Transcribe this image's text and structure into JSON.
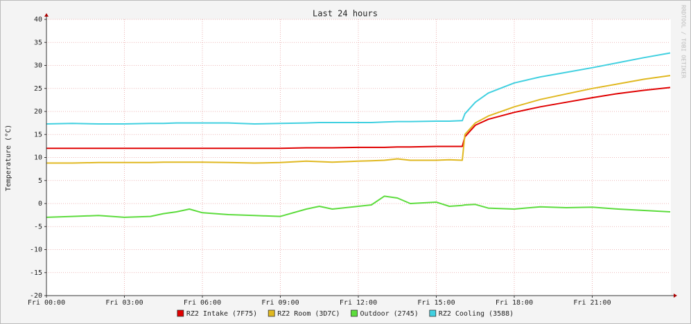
{
  "chart_data": {
    "type": "line",
    "title": "Last 24 hours",
    "y_label": "Temperature (°C)",
    "watermark": "RRDTOOL / TOBI OETIKER",
    "x": [
      0,
      1,
      2,
      3,
      4,
      4.5,
      5,
      5.5,
      6,
      7,
      8,
      9,
      10,
      10.5,
      11,
      12,
      12.5,
      13,
      13.5,
      14,
      15,
      15.5,
      16,
      16.1,
      16.5,
      17,
      18,
      19,
      20,
      21,
      22,
      23,
      24
    ],
    "xlim": [
      0,
      24
    ],
    "xticks": [
      {
        "value": 0,
        "label": "Fri 00:00"
      },
      {
        "value": 3,
        "label": "Fri 03:00"
      },
      {
        "value": 6,
        "label": "Fri 06:00"
      },
      {
        "value": 9,
        "label": "Fri 09:00"
      },
      {
        "value": 12,
        "label": "Fri 12:00"
      },
      {
        "value": 15,
        "label": "Fri 15:00"
      },
      {
        "value": 18,
        "label": "Fri 18:00"
      },
      {
        "value": 21,
        "label": "Fri 21:00"
      }
    ],
    "ylim": [
      -20,
      40
    ],
    "yticks": [
      -20,
      -15,
      -10,
      -5,
      0,
      5,
      10,
      15,
      20,
      25,
      30,
      35,
      40
    ],
    "grid": true,
    "series": [
      {
        "name": "RZ2 Intake (7F75)",
        "color": "#e00000",
        "values": [
          12.0,
          12.0,
          12.0,
          12.0,
          12.0,
          12.0,
          12.0,
          12.0,
          12.0,
          12.0,
          12.0,
          12.0,
          12.1,
          12.1,
          12.1,
          12.2,
          12.2,
          12.2,
          12.3,
          12.3,
          12.4,
          12.4,
          12.4,
          14.5,
          17.0,
          18.3,
          19.8,
          21.0,
          22.0,
          23.0,
          23.9,
          24.6,
          25.2
        ]
      },
      {
        "name": "RZ2 Room (3D7C)",
        "color": "#e0b820",
        "values": [
          8.8,
          8.8,
          8.9,
          8.9,
          8.9,
          9.0,
          9.0,
          9.0,
          9.0,
          8.9,
          8.8,
          8.9,
          9.2,
          9.1,
          9.0,
          9.2,
          9.3,
          9.4,
          9.7,
          9.4,
          9.4,
          9.5,
          9.4,
          15.0,
          17.5,
          19.0,
          21.0,
          22.6,
          23.8,
          25.0,
          26.0,
          27.0,
          27.8
        ]
      },
      {
        "name": "Outdoor (2745)",
        "color": "#5cdc3c",
        "values": [
          -3.0,
          -2.8,
          -2.6,
          -3.0,
          -2.8,
          -2.2,
          -1.8,
          -1.2,
          -2.0,
          -2.4,
          -2.6,
          -2.8,
          -1.2,
          -0.6,
          -1.2,
          -0.6,
          -0.3,
          1.6,
          1.2,
          0.0,
          0.3,
          -0.6,
          -0.4,
          -0.3,
          -0.2,
          -1.0,
          -1.2,
          -0.7,
          -0.9,
          -0.8,
          -1.2,
          -1.5,
          -1.8
        ]
      },
      {
        "name": "RZ2 Cooling (3588)",
        "color": "#40d0e0",
        "values": [
          17.3,
          17.4,
          17.3,
          17.3,
          17.4,
          17.4,
          17.5,
          17.5,
          17.5,
          17.5,
          17.3,
          17.4,
          17.5,
          17.6,
          17.6,
          17.6,
          17.6,
          17.7,
          17.8,
          17.8,
          17.9,
          17.9,
          18.0,
          19.5,
          22.0,
          24.0,
          26.2,
          27.5,
          28.5,
          29.5,
          30.6,
          31.7,
          32.7
        ]
      }
    ]
  }
}
